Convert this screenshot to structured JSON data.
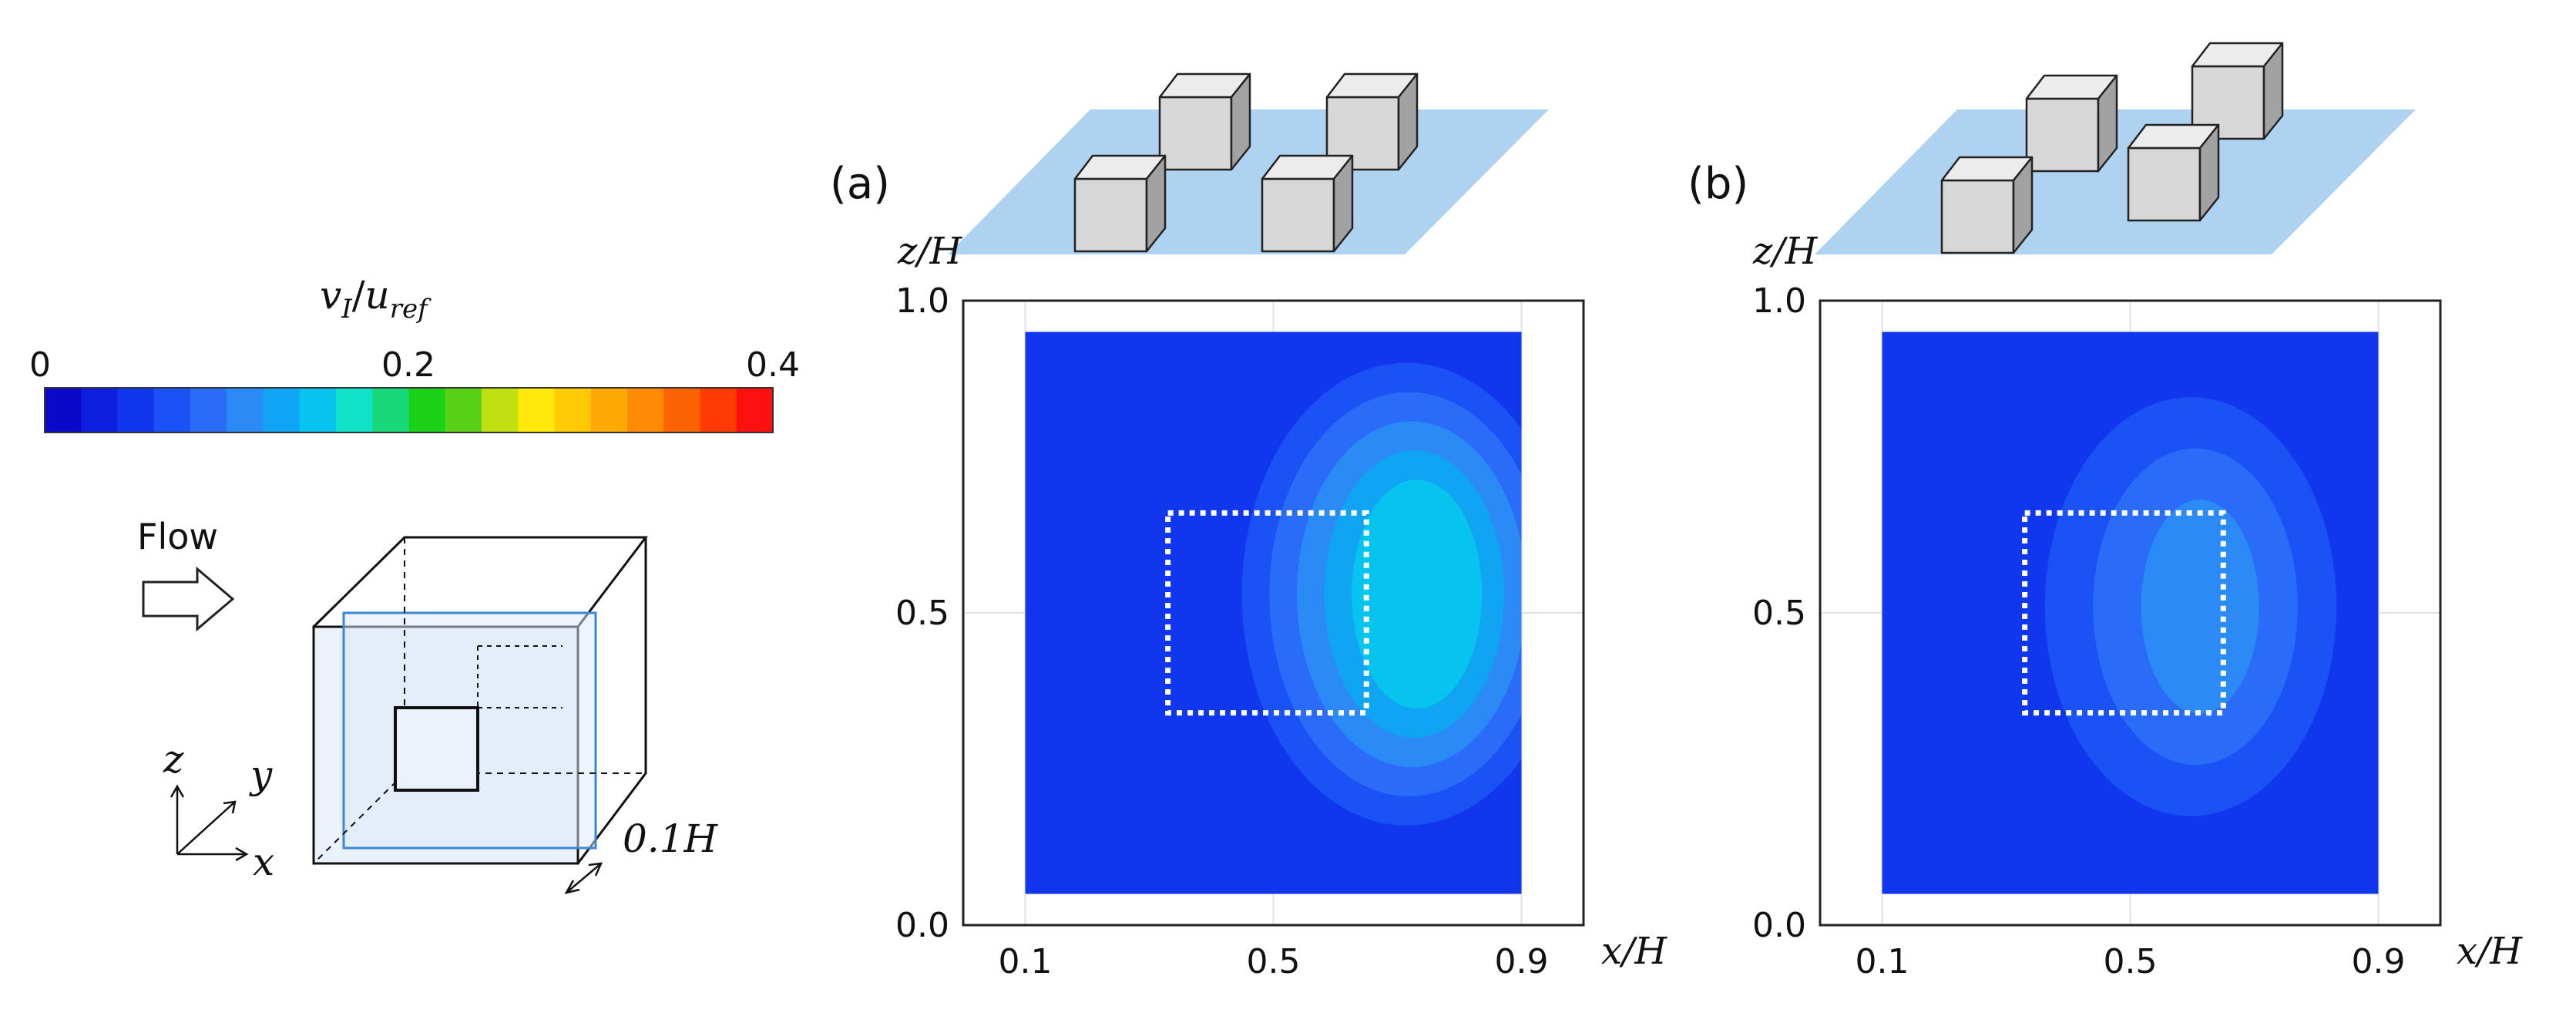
{
  "colorbar": {
    "title_var": "v",
    "title_var_sub": "I",
    "title_ref": "u",
    "title_ref_sub": "ref",
    "min_label": "0",
    "mid_label": "0.2",
    "max_label": "0.4",
    "range": [
      0,
      0.4
    ],
    "colors": [
      "#0a08c9",
      "#0c1ee0",
      "#1137ee",
      "#1a52f5",
      "#2a6cf8",
      "#2a8bf6",
      "#10a5f2",
      "#06c4ee",
      "#10e3c8",
      "#18d97a",
      "#1cd219",
      "#58d014",
      "#c2e011",
      "#ffe80a",
      "#ffca05",
      "#ffaa04",
      "#ff8a03",
      "#ff6203",
      "#ff3a02",
      "#ff1010"
    ]
  },
  "legend": {
    "flow_label": "Flow",
    "axis_z": "z",
    "axis_y": "y",
    "axis_x": "x",
    "thickness_label": "0.1H"
  },
  "chart_data": [
    {
      "type": "heatmap",
      "panel_label": "(a)",
      "xlabel": "x/H",
      "ylabel": "z/H",
      "xlim": [
        0.0,
        1.0
      ],
      "ylim": [
        0.0,
        1.0
      ],
      "xticks": [
        "0.1",
        "0.5",
        "0.9"
      ],
      "yticks": [
        "0.0",
        "0.5",
        "1.0"
      ],
      "xtick_values": [
        0.1,
        0.5,
        0.9
      ],
      "ytick_values": [
        0.0,
        0.5,
        1.0
      ],
      "field_extent": {
        "x": [
          0.1,
          0.9
        ],
        "z": [
          0.05,
          0.95
        ]
      },
      "background_value": 0.05,
      "peak": {
        "x": 0.74,
        "z": 0.53,
        "value": 0.16
      },
      "window_outline": {
        "x": [
          0.33,
          0.65
        ],
        "z": [
          0.34,
          0.66
        ]
      },
      "layout": "aligned cubes"
    },
    {
      "type": "heatmap",
      "panel_label": "(b)",
      "xlabel": "x/H",
      "ylabel": "z/H",
      "xlim": [
        0.0,
        1.0
      ],
      "ylim": [
        0.0,
        1.0
      ],
      "xticks": [
        "0.1",
        "0.5",
        "0.9"
      ],
      "yticks": [
        "0.0",
        "0.5",
        "1.0"
      ],
      "xtick_values": [
        0.1,
        0.5,
        0.9
      ],
      "ytick_values": [
        0.0,
        0.5,
        1.0
      ],
      "field_extent": {
        "x": [
          0.1,
          0.9
        ],
        "z": [
          0.05,
          0.95
        ]
      },
      "background_value": 0.05,
      "peak": {
        "x": 0.62,
        "z": 0.51,
        "value": 0.11
      },
      "window_outline": {
        "x": [
          0.33,
          0.65
        ],
        "z": [
          0.34,
          0.66
        ]
      },
      "layout": "staggered cubes"
    }
  ]
}
